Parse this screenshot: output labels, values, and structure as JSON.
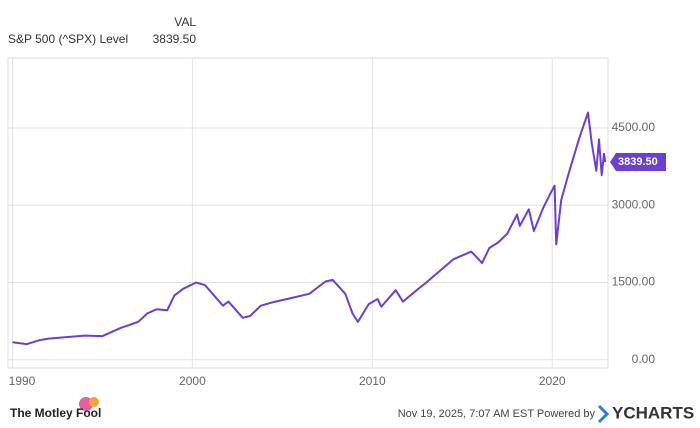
{
  "chart_data": {
    "type": "line",
    "legend_header": "VAL",
    "x": [
      1990.0,
      1990.8,
      1991.5,
      1992.0,
      1993.0,
      1994.0,
      1995.0,
      1996.0,
      1997.0,
      1997.5,
      1998.0,
      1998.6,
      1999.0,
      1999.5,
      2000.2,
      2000.7,
      2001.0,
      2001.7,
      2002.0,
      2002.8,
      2003.2,
      2003.8,
      2004.5,
      2005.5,
      2006.5,
      2007.4,
      2007.8,
      2008.5,
      2008.9,
      2009.2,
      2009.8,
      2010.3,
      2010.5,
      2011.3,
      2011.7,
      2012.5,
      2013.0,
      2013.5,
      2014.0,
      2014.5,
      2015.5,
      2016.1,
      2016.5,
      2017.0,
      2017.5,
      2018.05,
      2018.2,
      2018.7,
      2018.98,
      2019.5,
      2019.9,
      2020.13,
      2020.22,
      2020.5,
      2020.9,
      2021.5,
      2021.99,
      2022.2,
      2022.45,
      2022.6,
      2022.75,
      2022.88,
      2022.95
    ],
    "series": [
      {
        "name": "S&P 500 (^SPX) Level",
        "color": "#6b3fd4",
        "values": [
          340,
          305,
          380,
          410,
          440,
          470,
          460,
          615,
          740,
          900,
          980,
          960,
          1250,
          1380,
          1500,
          1450,
          1330,
          1050,
          1130,
          815,
          850,
          1050,
          1120,
          1200,
          1280,
          1520,
          1550,
          1280,
          900,
          735,
          1080,
          1180,
          1030,
          1350,
          1130,
          1360,
          1500,
          1650,
          1800,
          1950,
          2100,
          1880,
          2170,
          2280,
          2450,
          2820,
          2600,
          2920,
          2500,
          2950,
          3230,
          3380,
          2240,
          3100,
          3600,
          4300,
          4800,
          4200,
          3670,
          4280,
          3585,
          4000,
          3839.5
        ]
      }
    ],
    "last_value": {
      "value": 3839.5,
      "label": "3839.50"
    },
    "xlim": [
      1989.75,
      2023.1
    ],
    "xticks": [
      1990,
      2000,
      2010,
      2020
    ],
    "ylim": [
      -160,
      5860
    ],
    "yticks": [
      {
        "value": 0,
        "label": "0.00"
      },
      {
        "value": 1500,
        "label": "1500.00"
      },
      {
        "value": 3000,
        "label": "3000.00"
      },
      {
        "value": 4500,
        "label": "4500.00"
      }
    ],
    "grid": true,
    "footer": {
      "source": "The Motley Fool",
      "timestamp": "Nov 19, 2025, 7:07 AM EST Powered by",
      "brand": "YCHARTS"
    }
  }
}
